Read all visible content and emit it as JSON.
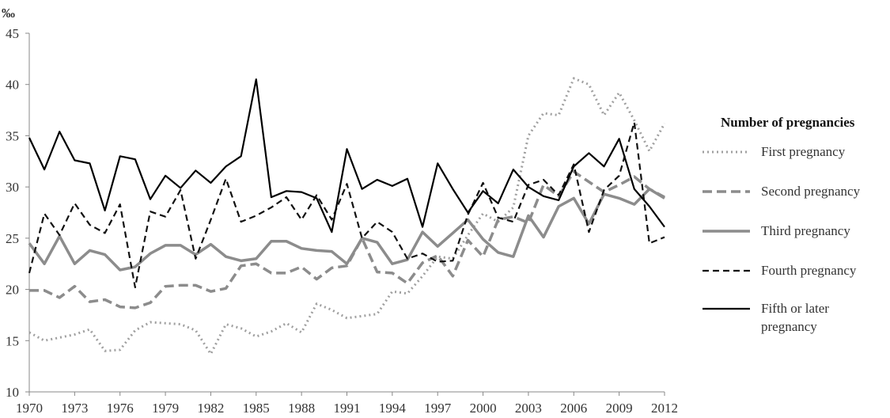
{
  "chart_data": {
    "type": "line",
    "ylabel": "‰",
    "legend_title": "Number of pregnancies",
    "legend_position": "right",
    "xlim": [
      1970,
      2012
    ],
    "xticks": [
      1970,
      1973,
      1976,
      1979,
      1982,
      1985,
      1988,
      1991,
      1994,
      1997,
      2000,
      2003,
      2006,
      2009,
      2012
    ],
    "ylim": [
      10,
      45
    ],
    "yticks": [
      10,
      15,
      20,
      25,
      30,
      35,
      40,
      45
    ],
    "grid": false,
    "x": [
      1970,
      1971,
      1972,
      1973,
      1974,
      1975,
      1976,
      1977,
      1978,
      1979,
      1980,
      1981,
      1982,
      1983,
      1984,
      1985,
      1986,
      1987,
      1988,
      1989,
      1990,
      1991,
      1992,
      1993,
      1994,
      1995,
      1996,
      1997,
      1998,
      1999,
      2000,
      2001,
      2002,
      2003,
      2004,
      2005,
      2006,
      2007,
      2008,
      2009,
      2010,
      2011,
      2012
    ],
    "series": [
      {
        "name": "First pregnancy",
        "color": "#a0a0a0",
        "dash": "2,4",
        "width": 3,
        "values": [
          15.8,
          15.0,
          15.3,
          15.6,
          16.1,
          14.0,
          14.1,
          16.0,
          16.8,
          16.7,
          16.6,
          16.0,
          13.7,
          16.6,
          16.2,
          15.4,
          15.9,
          16.7,
          15.8,
          18.6,
          18.0,
          17.2,
          17.4,
          17.6,
          19.8,
          19.6,
          21.3,
          23.2,
          23.0,
          25.3,
          27.4,
          26.6,
          28.0,
          35.0,
          37.2,
          37.0,
          40.6,
          40.0,
          37.0,
          39.2,
          36.5,
          33.5,
          36.2
        ]
      },
      {
        "name": "Second pregnancy",
        "color": "#8c8c8c",
        "dash": "12,6",
        "width": 3.5,
        "values": [
          19.9,
          19.9,
          19.2,
          20.3,
          18.8,
          19.0,
          18.3,
          18.2,
          18.7,
          20.3,
          20.4,
          20.4,
          19.8,
          20.1,
          22.3,
          22.5,
          21.6,
          21.6,
          22.2,
          21.0,
          22.1,
          22.3,
          25.0,
          21.7,
          21.6,
          20.6,
          22.6,
          23.3,
          21.3,
          24.8,
          23.2,
          26.8,
          27.1,
          26.5,
          30.2,
          29.1,
          31.5,
          30.5,
          29.5,
          30.2,
          31.0,
          29.8,
          29.0
        ]
      },
      {
        "name": "Third pregnancy",
        "color": "#8c8c8c",
        "dash": "none",
        "width": 3.5,
        "values": [
          24.5,
          22.5,
          25.2,
          22.5,
          23.8,
          23.4,
          21.9,
          22.2,
          23.5,
          24.3,
          24.3,
          23.4,
          24.4,
          23.2,
          22.8,
          23.0,
          24.7,
          24.7,
          24.0,
          23.8,
          23.7,
          22.5,
          25.0,
          24.6,
          22.5,
          22.9,
          25.6,
          24.2,
          25.5,
          26.8,
          24.9,
          23.6,
          23.2,
          27.2,
          25.1,
          28.1,
          28.9,
          26.4,
          29.3,
          28.9,
          28.3,
          29.8,
          28.9
        ]
      },
      {
        "name": "Fourth pregnancy",
        "color": "#111111",
        "dash": "8,5",
        "width": 2.2,
        "values": [
          21.6,
          27.4,
          25.3,
          28.4,
          26.3,
          25.5,
          28.3,
          20.2,
          27.6,
          27.1,
          29.7,
          23.0,
          26.8,
          30.8,
          26.6,
          27.2,
          28.0,
          29.0,
          26.8,
          29.2,
          26.8,
          30.3,
          25.0,
          26.6,
          25.6,
          23.0,
          23.5,
          22.7,
          22.8,
          27.3,
          30.4,
          27.0,
          26.6,
          30.2,
          30.7,
          29.2,
          32.2,
          25.6,
          29.7,
          31.1,
          36.3,
          24.5,
          25.1
        ]
      },
      {
        "name": "Fifth or later pregnancy",
        "color": "#000000",
        "dash": "none",
        "width": 2.2,
        "values": [
          34.8,
          31.7,
          35.4,
          32.6,
          32.3,
          27.7,
          33.0,
          32.7,
          28.8,
          31.1,
          29.9,
          31.6,
          30.4,
          32.0,
          33.0,
          40.5,
          29.0,
          29.6,
          29.5,
          28.9,
          25.6,
          33.7,
          29.8,
          30.7,
          30.1,
          30.8,
          26.1,
          32.3,
          29.8,
          27.5,
          29.6,
          28.4,
          31.7,
          30.0,
          29.1,
          28.7,
          32.0,
          33.3,
          32.0,
          34.7,
          29.8,
          28.1,
          26.1
        ]
      }
    ]
  }
}
